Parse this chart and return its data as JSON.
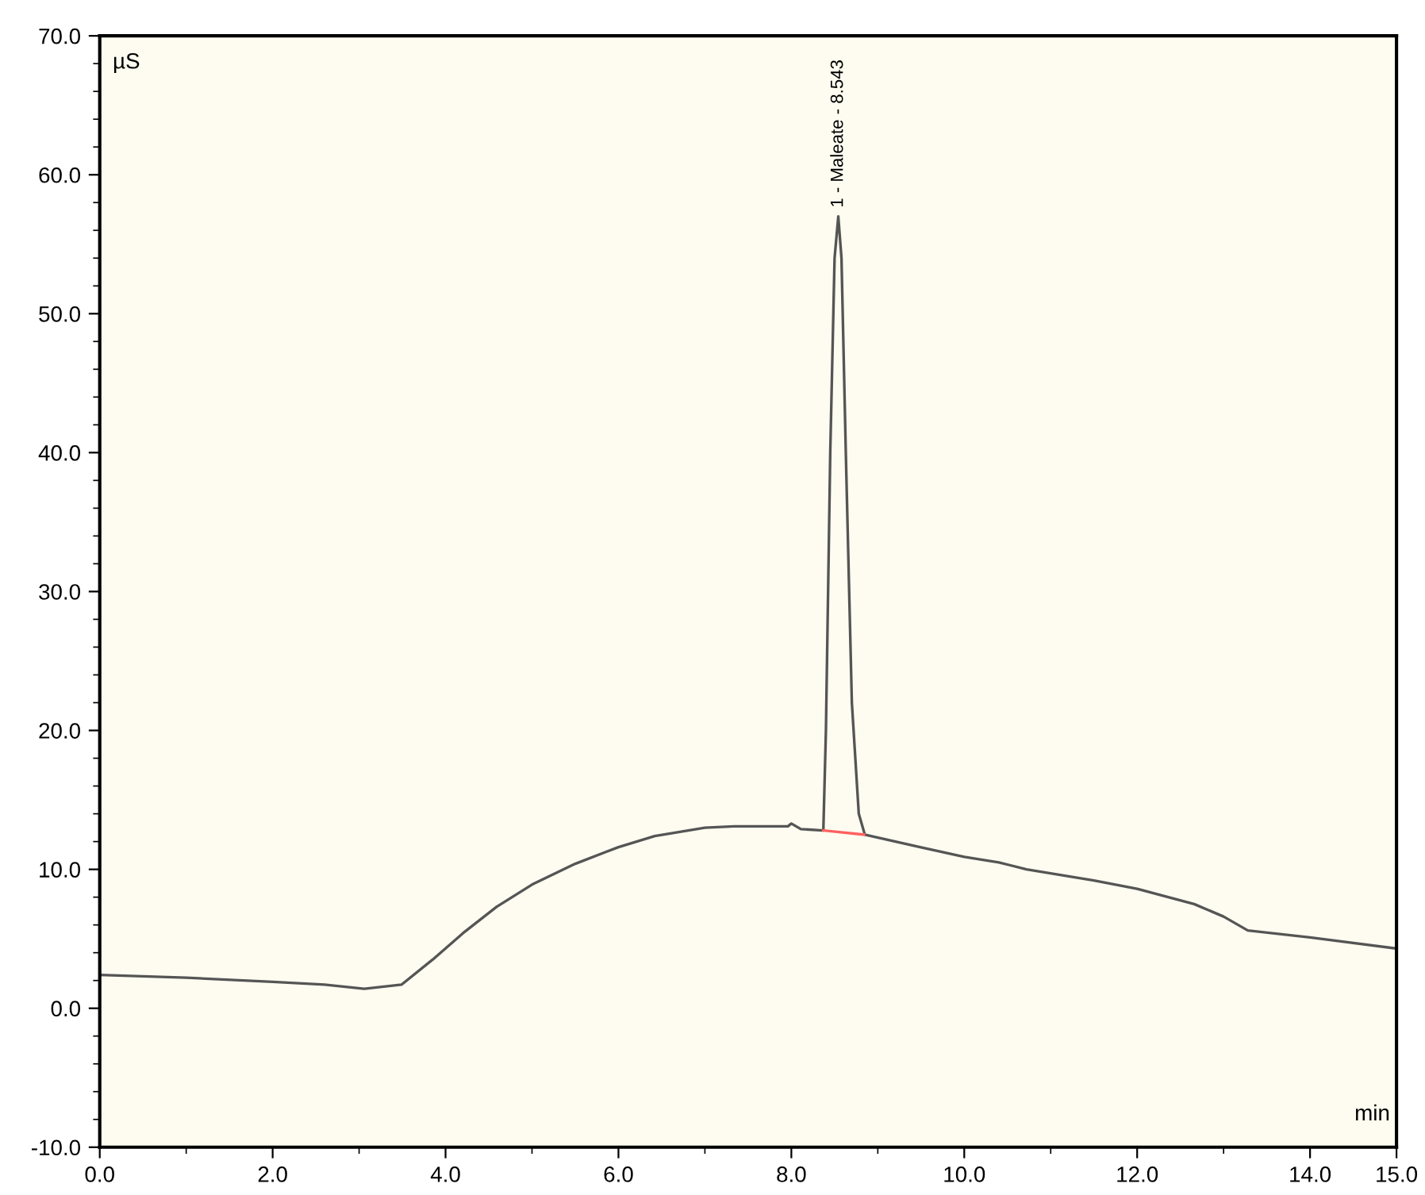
{
  "chart_data": {
    "type": "line",
    "xlabel": "min",
    "ylabel": "µS",
    "x": [
      0,
      1.0,
      2.0,
      2.6,
      3.06,
      3.49,
      3.85,
      4.2,
      4.59,
      5.0,
      5.5,
      6.0,
      6.42,
      7.0,
      7.34,
      7.7,
      7.96,
      8.0,
      8.11,
      8.37,
      8.4,
      8.45,
      8.5,
      8.543,
      8.58,
      8.63,
      8.7,
      8.78,
      8.85,
      9.49,
      10.0,
      10.4,
      10.72,
      11.5,
      12.0,
      12.66,
      13.0,
      13.28,
      14.0,
      15.0
    ],
    "series": [
      {
        "color": "#555555",
        "values": [
          2.4,
          2.2,
          1.9,
          1.7,
          1.4,
          1.7,
          3.5,
          5.4,
          7.3,
          8.9,
          10.4,
          11.6,
          12.4,
          13.0,
          13.1,
          13.1,
          13.1,
          13.3,
          12.9,
          12.8,
          20,
          40,
          54,
          57,
          54,
          40,
          22,
          14,
          12.5,
          11.6,
          10.9,
          10.5,
          10.0,
          9.2,
          8.6,
          7.5,
          6.6,
          5.6,
          5.1,
          4.3
        ]
      },
      {
        "color": "#ff6060",
        "x": [
          8.37,
          8.84
        ],
        "values": [
          12.8,
          12.5
        ]
      }
    ],
    "annotations": [
      {
        "text": "1 - Maleate - 8.543",
        "x": 8.543,
        "y": 57
      }
    ],
    "xlim": [
      0,
      15
    ],
    "ylim": [
      -10,
      70
    ],
    "xticks": [
      {
        "value": 0,
        "label": "0.0"
      },
      {
        "value": 2,
        "label": "2.0"
      },
      {
        "value": 4,
        "label": "4.0"
      },
      {
        "value": 6,
        "label": "6.0"
      },
      {
        "value": 8,
        "label": "8.0"
      },
      {
        "value": 10,
        "label": "10.0"
      },
      {
        "value": 12,
        "label": "12.0"
      },
      {
        "value": 14,
        "label": "14.0"
      },
      {
        "value": 15,
        "label": "15.0"
      }
    ],
    "yticks": [
      {
        "value": -10,
        "label": "-10.0"
      },
      {
        "value": 0,
        "label": "0.0"
      },
      {
        "value": 10,
        "label": "10.0"
      },
      {
        "value": 20,
        "label": "20.0"
      },
      {
        "value": 30,
        "label": "30.0"
      },
      {
        "value": 40,
        "label": "40.0"
      },
      {
        "value": 50,
        "label": "50.0"
      },
      {
        "value": 60,
        "label": "60.0"
      },
      {
        "value": 70,
        "label": "70.0"
      }
    ],
    "grid": false,
    "legend": false
  }
}
